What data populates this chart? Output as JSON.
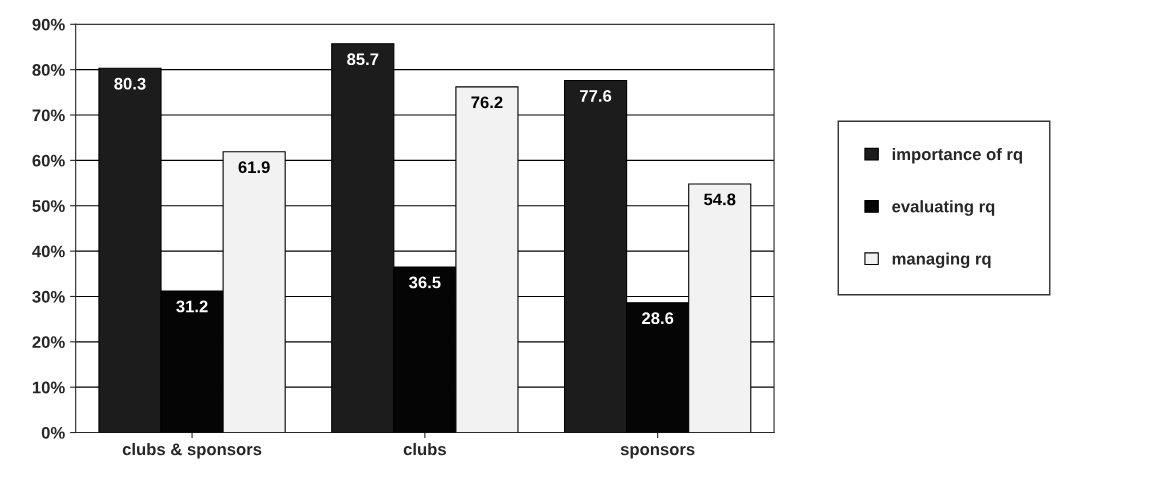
{
  "chart_data": {
    "type": "bar",
    "categories": [
      "clubs & sponsors",
      "clubs",
      "sponsors"
    ],
    "series": [
      {
        "name": "importance of rq",
        "color": "#1c1c1c",
        "values": [
          80.3,
          85.7,
          77.6
        ]
      },
      {
        "name": "evaluating rq",
        "color": "#050505",
        "values": [
          31.2,
          36.5,
          28.6
        ]
      },
      {
        "name": "managing rq",
        "color": "#f2f2f2",
        "values": [
          61.9,
          76.2,
          54.8
        ]
      }
    ],
    "ylim": [
      0,
      90
    ],
    "yticks": [
      {
        "value": 0,
        "label": "0%"
      },
      {
        "value": 10,
        "label": "10%"
      },
      {
        "value": 20,
        "label": "20%"
      },
      {
        "value": 30,
        "label": "30%"
      },
      {
        "value": 40,
        "label": "40%"
      },
      {
        "value": 50,
        "label": "50%"
      },
      {
        "value": 60,
        "label": "60%"
      },
      {
        "value": 70,
        "label": "70%"
      },
      {
        "value": 80,
        "label": "80%"
      },
      {
        "value": 90,
        "label": "90%"
      }
    ],
    "grid": "y",
    "legend": "right",
    "data_labels": true
  }
}
